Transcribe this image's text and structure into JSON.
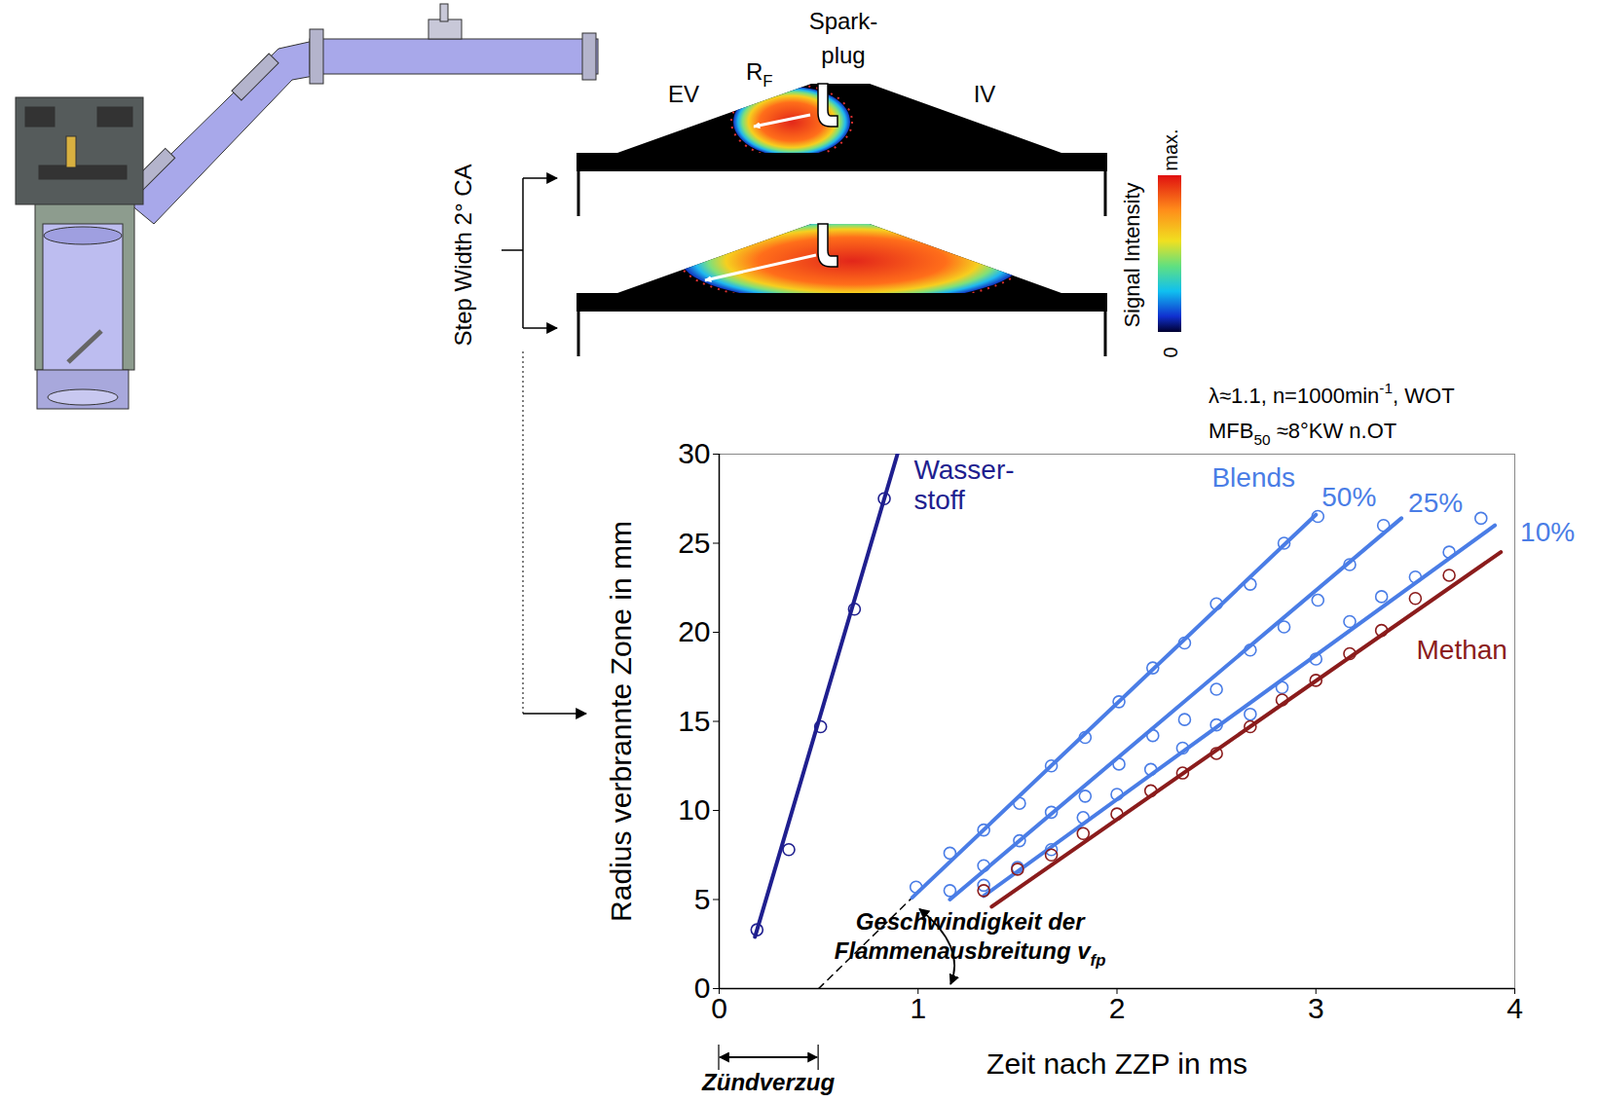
{
  "chart_data": {
    "type": "scatter",
    "xlabel": "Zeit nach ZZP in ms",
    "ylabel": "Radius verbrannte Zone in mm",
    "xlim": [
      0,
      4
    ],
    "xticks": [
      0,
      1,
      2,
      3,
      4
    ],
    "ylim": [
      0,
      30
    ],
    "yticks": [
      0,
      5,
      10,
      15,
      20,
      25,
      30
    ],
    "grid": false,
    "marker": "circle",
    "conditions": [
      [
        {
          "t": "λ≈1.1, n=1000min"
        },
        {
          "t": "-1",
          "sup": true
        },
        {
          "t": ", WOT"
        }
      ],
      [
        {
          "t": "MFB"
        },
        {
          "t": "50",
          "sub": true
        },
        {
          "t": " ≈8°KW n.OT"
        }
      ]
    ],
    "groups": [
      {
        "label": "Blends",
        "series": [
          "50%",
          "25%",
          "10%"
        ]
      }
    ],
    "series": [
      {
        "name": "Wasser-\nstoff",
        "color": "#1f1f8f",
        "x": [
          0.19,
          0.35,
          0.51,
          0.68,
          0.83
        ],
        "values": [
          3.3,
          7.8,
          14.7,
          21.3,
          27.5
        ],
        "fit": {
          "x": [
            0.18,
            0.92
          ],
          "y": [
            2.9,
            30.9
          ]
        }
      },
      {
        "name": "50%",
        "color": "#4a7de6",
        "x": [
          0.99,
          1.16,
          1.33,
          1.51,
          1.67,
          1.84,
          2.01,
          2.18,
          2.34,
          2.5,
          2.67,
          2.84,
          3.01
        ],
        "values": [
          5.7,
          7.6,
          8.9,
          10.4,
          12.5,
          14.1,
          16.1,
          18.0,
          19.4,
          21.6,
          22.7,
          25.0,
          26.5
        ],
        "fit": {
          "x": [
            0.97,
            3.0
          ],
          "y": [
            5.1,
            26.6
          ]
        }
      },
      {
        "name": "25%",
        "color": "#4a7de6",
        "x": [
          1.16,
          1.33,
          1.51,
          1.67,
          1.84,
          2.01,
          2.18,
          2.34,
          2.5,
          2.67,
          2.84,
          3.01,
          3.17,
          3.34
        ],
        "values": [
          5.5,
          6.9,
          8.3,
          9.9,
          10.8,
          12.6,
          14.2,
          15.1,
          16.8,
          19.0,
          20.3,
          21.8,
          23.8,
          26.0
        ],
        "fit": {
          "x": [
            1.16,
            3.43
          ],
          "y": [
            5.0,
            26.4
          ]
        }
      },
      {
        "name": "10%",
        "color": "#4a7de6",
        "x": [
          1.33,
          1.5,
          1.67,
          1.83,
          2.0,
          2.17,
          2.33,
          2.5,
          2.67,
          2.83,
          3.0,
          3.17,
          3.33,
          3.5,
          3.67,
          3.83
        ],
        "values": [
          5.8,
          6.8,
          7.8,
          9.6,
          10.9,
          12.3,
          13.5,
          14.8,
          15.4,
          16.9,
          18.5,
          20.6,
          22.0,
          23.1,
          24.5,
          26.4
        ],
        "fit": {
          "x": [
            1.33,
            3.9
          ],
          "y": [
            5.2,
            26.0
          ]
        }
      },
      {
        "name": "Methan",
        "color": "#8b1c1c",
        "x": [
          1.33,
          1.5,
          1.67,
          1.83,
          2.0,
          2.17,
          2.33,
          2.5,
          2.67,
          2.83,
          3.0,
          3.17,
          3.33,
          3.5,
          3.67
        ],
        "values": [
          5.5,
          6.7,
          7.5,
          8.7,
          9.8,
          11.1,
          12.1,
          13.2,
          14.7,
          16.2,
          17.3,
          18.8,
          20.1,
          21.9,
          23.2
        ],
        "fit": {
          "x": [
            1.37,
            3.93
          ],
          "y": [
            4.6,
            24.5
          ]
        }
      }
    ],
    "annotations": {
      "ignition_delay": {
        "label": "Zündverzug",
        "value": 0.5,
        "series": "50%"
      },
      "flame_speed": {
        "label": [
          [
            {
              "t": "Geschwindigkeit der"
            }
          ],
          [
            {
              "t": "Flammenausbreitung v"
            },
            {
              "t": "fp",
              "sub": true
            }
          ]
        ],
        "series": "50%"
      }
    }
  },
  "diagram": {
    "spark_plug": "Spark-\nplug",
    "exhaust_valve": "EV",
    "intake_valve": "IV",
    "flame_radius": [
      {
        "t": "R"
      },
      {
        "t": "F",
        "sub": true
      }
    ],
    "step_width": "Step Width 2° CA",
    "colorbar": {
      "label": "Signal Intensity",
      "max_label": "max.",
      "min_label": "0"
    }
  }
}
